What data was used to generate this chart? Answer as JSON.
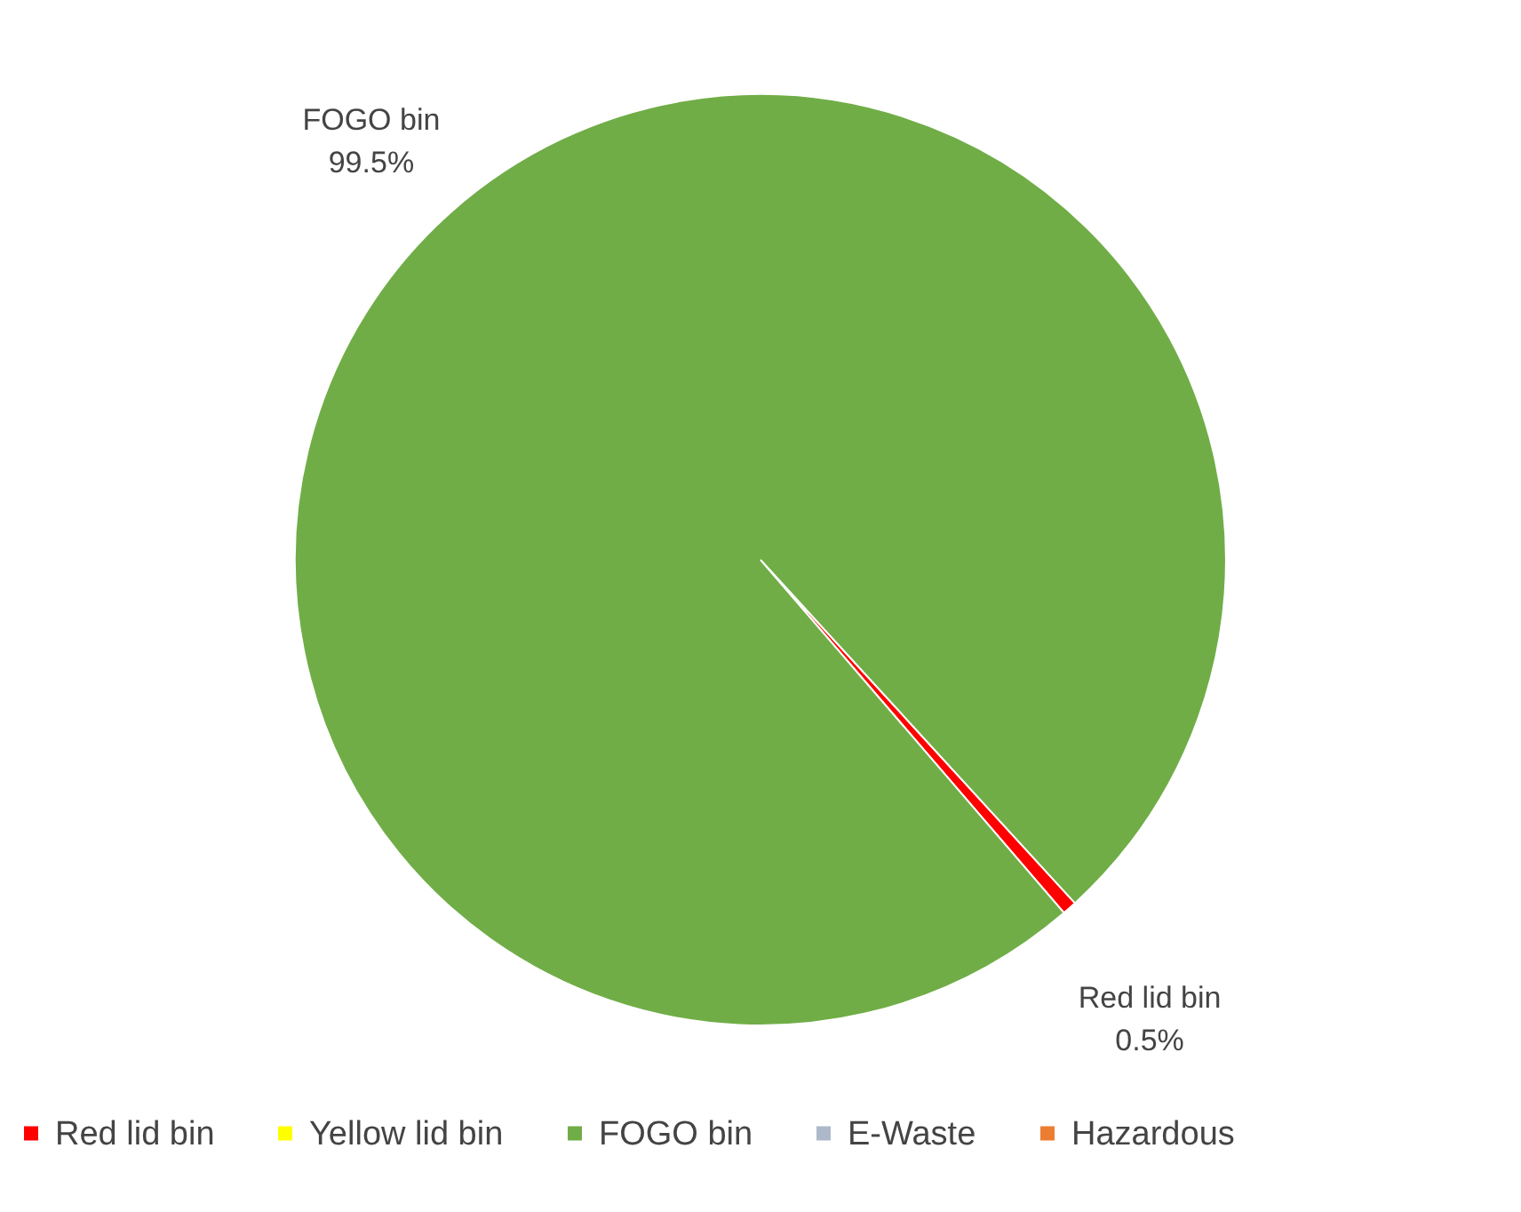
{
  "chart_data": {
    "type": "pie",
    "categories": [
      "Red lid bin",
      "Yellow lid bin",
      "FOGO bin",
      "E-Waste",
      "Hazardous"
    ],
    "values": [
      0.5,
      0,
      99.5,
      0,
      0
    ],
    "colors": [
      "#ff0000",
      "#ffff00",
      "#70ad47",
      "#adb9ca",
      "#ed7d31"
    ],
    "value_labels": [
      "0.5%",
      null,
      "99.5%",
      null,
      null
    ],
    "legend": "bottom"
  }
}
